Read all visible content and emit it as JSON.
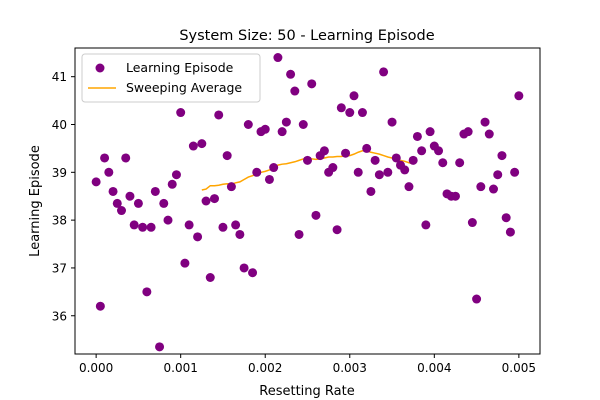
{
  "chart_data": {
    "type": "scatter",
    "title": "System Size: 50 - Learning Episode",
    "xlabel": "Resetting Rate",
    "ylabel": "Learning Episode",
    "xlim": [
      -0.00025,
      0.00525
    ],
    "ylim": [
      35.2,
      41.6
    ],
    "xticks": [
      0.0,
      0.001,
      0.002,
      0.003,
      0.004,
      0.005
    ],
    "xtick_labels": [
      "0.000",
      "0.001",
      "0.002",
      "0.003",
      "0.004",
      "0.005"
    ],
    "yticks": [
      36,
      37,
      38,
      39,
      40,
      41
    ],
    "ytick_labels": [
      "36",
      "37",
      "38",
      "39",
      "40",
      "41"
    ],
    "grid": false,
    "legend_position": "upper-left",
    "colors": {
      "scatter": "#800080",
      "line": "#FFA500"
    },
    "series": [
      {
        "name": "Learning Episode",
        "type": "scatter",
        "x": [
          0.0,
          5e-05,
          0.0001,
          0.00015,
          0.0002,
          0.00025,
          0.0003,
          0.00035,
          0.0004,
          0.00045,
          0.0005,
          0.00055,
          0.0006,
          0.00065,
          0.0007,
          0.00075,
          0.0008,
          0.00085,
          0.0009,
          0.00095,
          0.001,
          0.00105,
          0.0011,
          0.00115,
          0.0012,
          0.00125,
          0.0013,
          0.00135,
          0.0014,
          0.00145,
          0.0015,
          0.00155,
          0.0016,
          0.00165,
          0.0017,
          0.00175,
          0.0018,
          0.00185,
          0.0019,
          0.00195,
          0.002,
          0.00205,
          0.0021,
          0.00215,
          0.0022,
          0.00225,
          0.0023,
          0.00235,
          0.0024,
          0.00245,
          0.0025,
          0.00255,
          0.0026,
          0.00265,
          0.0027,
          0.00275,
          0.0028,
          0.00285,
          0.0029,
          0.00295,
          0.003,
          0.00305,
          0.0031,
          0.00315,
          0.0032,
          0.00325,
          0.0033,
          0.00335,
          0.0034,
          0.00345,
          0.0035,
          0.00355,
          0.0036,
          0.00365,
          0.0037,
          0.00375,
          0.0038,
          0.00385,
          0.0039,
          0.00395,
          0.004,
          0.00405,
          0.0041,
          0.00415,
          0.0042,
          0.00425,
          0.0043,
          0.00435,
          0.0044,
          0.00445,
          0.0045,
          0.00455,
          0.0046,
          0.00465,
          0.0047,
          0.00475,
          0.0048,
          0.00485,
          0.0049,
          0.00495,
          0.005
        ],
        "y": [
          38.8,
          36.2,
          39.3,
          39.0,
          38.6,
          38.35,
          38.2,
          39.3,
          38.5,
          37.9,
          38.35,
          37.85,
          36.5,
          37.85,
          38.6,
          35.35,
          38.35,
          38.0,
          38.75,
          38.95,
          40.25,
          37.1,
          37.9,
          39.55,
          37.65,
          39.6,
          38.4,
          36.8,
          38.45,
          40.2,
          37.85,
          39.35,
          38.7,
          37.9,
          37.7,
          37.0,
          40.0,
          36.9,
          39.0,
          39.85,
          39.9,
          38.85,
          39.1,
          41.4,
          39.85,
          40.05,
          41.05,
          40.7,
          37.7,
          40.0,
          39.25,
          40.85,
          38.1,
          39.35,
          39.45,
          39.0,
          39.1,
          37.8,
          40.35,
          39.4,
          40.25,
          40.6,
          39.0,
          40.25,
          39.5,
          38.6,
          39.25,
          38.95,
          41.1,
          39.0,
          40.05,
          39.3,
          39.15,
          39.05,
          38.7,
          39.25,
          39.75,
          39.45,
          37.9,
          39.85,
          39.55,
          39.45,
          39.2,
          38.55,
          38.5,
          38.5,
          39.2,
          39.8,
          39.85,
          37.95,
          36.35,
          38.7,
          40.05,
          39.8,
          38.65,
          38.95,
          39.35,
          38.05,
          37.75,
          39.0,
          40.6
        ]
      },
      {
        "name": "Sweeping Average",
        "type": "line",
        "x": [
          0.00125,
          0.0013,
          0.00135,
          0.0014,
          0.00145,
          0.0015,
          0.00155,
          0.0016,
          0.00165,
          0.0017,
          0.00175,
          0.0018,
          0.00185,
          0.0019,
          0.00195,
          0.002,
          0.00205,
          0.0021,
          0.00215,
          0.0022,
          0.00225,
          0.0023,
          0.00235,
          0.0024,
          0.00245,
          0.0025,
          0.00255,
          0.0026,
          0.00265,
          0.0027,
          0.00275,
          0.0028,
          0.00285,
          0.0029,
          0.00295,
          0.003,
          0.00305,
          0.0031,
          0.00315,
          0.0032,
          0.00325,
          0.0033,
          0.00335,
          0.0034,
          0.00345,
          0.0035,
          0.00355,
          0.0036,
          0.00365,
          0.0037,
          0.00375
        ],
        "y": [
          38.63,
          38.65,
          38.72,
          38.72,
          38.73,
          38.75,
          38.76,
          38.75,
          38.78,
          38.8,
          38.85,
          38.9,
          38.93,
          38.97,
          39.0,
          39.02,
          39.05,
          39.1,
          39.15,
          39.17,
          39.18,
          39.2,
          39.22,
          39.25,
          39.28,
          39.3,
          39.28,
          39.27,
          39.28,
          39.3,
          39.32,
          39.32,
          39.33,
          39.33,
          39.35,
          39.35,
          39.38,
          39.42,
          39.45,
          39.45,
          39.42,
          39.4,
          39.38,
          39.35,
          39.32,
          39.3,
          39.28,
          39.25,
          39.23,
          39.2,
          39.18
        ]
      }
    ]
  }
}
